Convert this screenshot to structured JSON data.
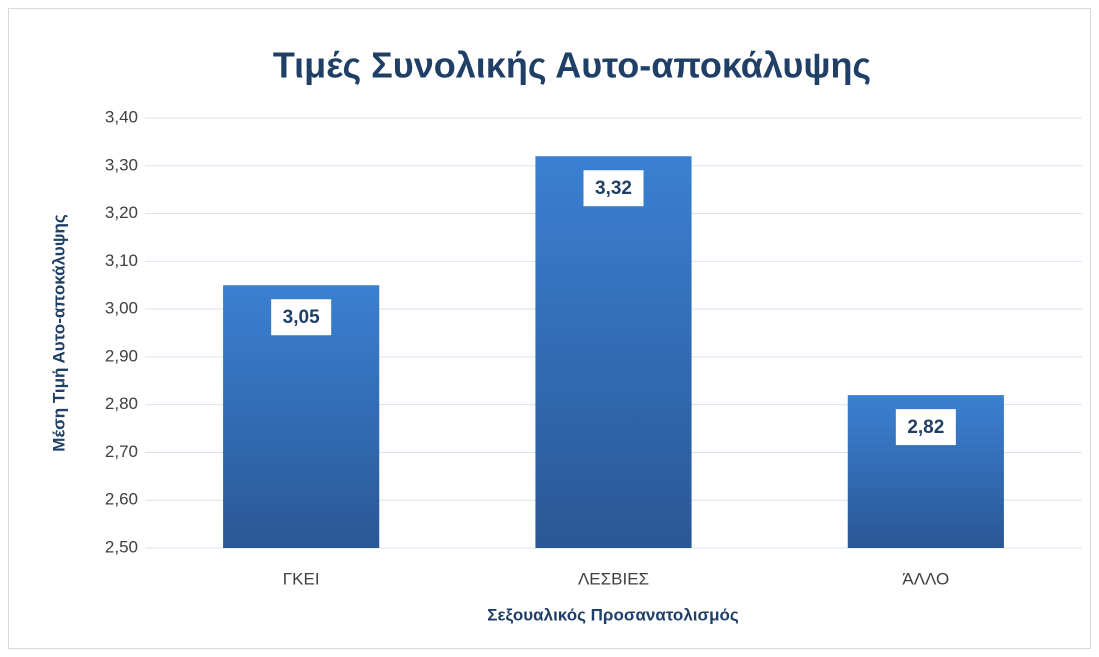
{
  "chart_data": {
    "type": "bar",
    "title": "Τιμές Συνολικής Αυτο-αποκάλυψης",
    "x_label": "Σεξουαλικός Προσανατολισμός",
    "y_label": "Μέση Τιμή Αυτο-αποκάλυψης",
    "categories": [
      "ΓΚΕΙ",
      "ΛΕΣΒΙΕΣ",
      "ΆΛΛΟ"
    ],
    "values": [
      3.05,
      3.32,
      2.82
    ],
    "value_labels": [
      "3,05",
      "3,32",
      "2,82"
    ],
    "color": "#3a7bca",
    "ylim": [
      2.5,
      3.4
    ],
    "yticks": [
      {
        "value": 2.5,
        "label": "2,50"
      },
      {
        "value": 2.6,
        "label": "2,60"
      },
      {
        "value": 2.7,
        "label": "2,70"
      },
      {
        "value": 2.8,
        "label": "2,80"
      },
      {
        "value": 2.9,
        "label": "2,90"
      },
      {
        "value": 3.0,
        "label": "3,00"
      },
      {
        "value": 3.1,
        "label": "3,10"
      },
      {
        "value": 3.2,
        "label": "3,20"
      },
      {
        "value": 3.3,
        "label": "3,30"
      },
      {
        "value": 3.4,
        "label": "3,40"
      }
    ],
    "grid": true
  }
}
